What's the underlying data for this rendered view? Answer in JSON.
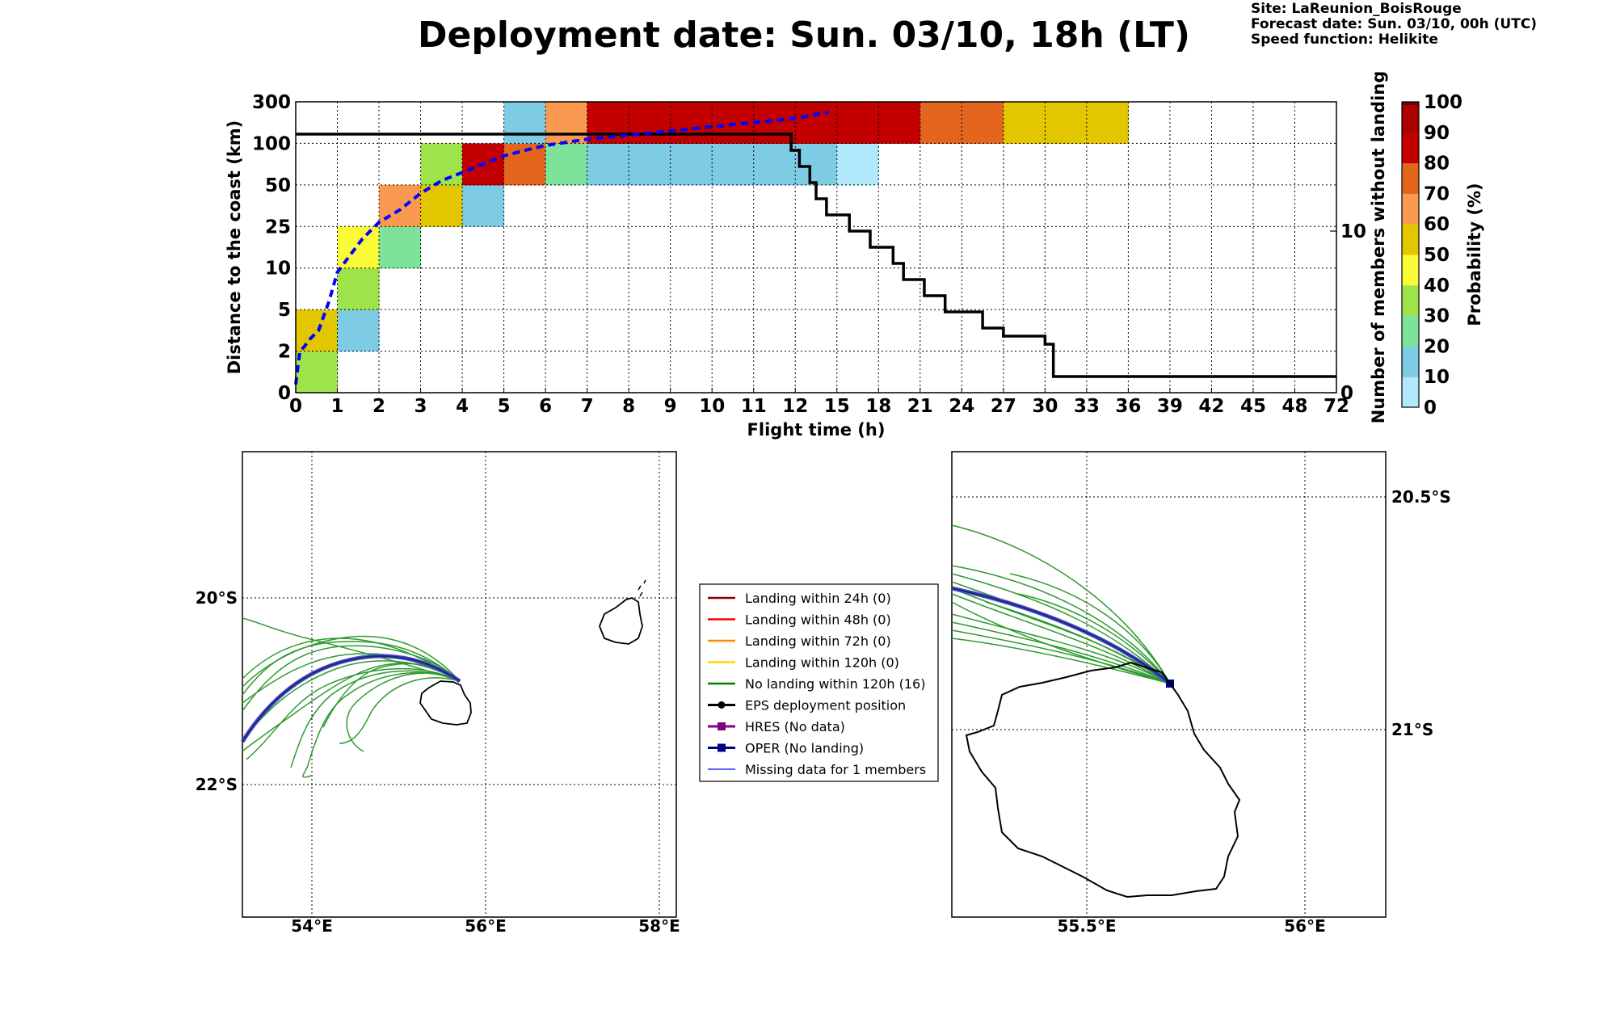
{
  "header": {
    "title": "Deployment date: Sun. 03/10, 18h (LT)",
    "site": "Site: LaReunion_BoisRouge",
    "forecast": "Forecast date: Sun. 03/10, 00h (UTC)",
    "speed": "Speed function: Helikite"
  },
  "chart_data": {
    "type": "heatmap",
    "xlabel": "Flight time (h)",
    "ylabel": "Distance to the coast (km)",
    "y2label": "Number of members without landing",
    "colorbar_label": "Probability (%)",
    "x_ticks": [
      "0",
      "1",
      "2",
      "3",
      "4",
      "5",
      "6",
      "7",
      "8",
      "9",
      "10",
      "11",
      "12",
      "15",
      "18",
      "21",
      "24",
      "27",
      "30",
      "33",
      "36",
      "39",
      "42",
      "45",
      "48",
      "72"
    ],
    "y_ticks": [
      "0",
      "2",
      "5",
      "10",
      "25",
      "50",
      "100",
      "300"
    ],
    "y2_ticks": [
      "0",
      "10"
    ],
    "y2_range": [
      0,
      18
    ],
    "colorbar_ticks": [
      "0",
      "10",
      "20",
      "30",
      "40",
      "50",
      "60",
      "70",
      "80",
      "90",
      "100"
    ],
    "colorbar_colors": [
      "#b2e8fb",
      "#7ecbe4",
      "#7ee39a",
      "#9de44a",
      "#fafa37",
      "#e2c700",
      "#fa9a50",
      "#e4661e",
      "#c20000",
      "#aa0000",
      "#6a0000"
    ],
    "cells": [
      {
        "x": 0,
        "y": 0,
        "p": 30
      },
      {
        "x": 0,
        "y": 1,
        "p": 50
      },
      {
        "x": 1,
        "y": 1,
        "p": 10
      },
      {
        "x": 1,
        "y": 2,
        "p": 30
      },
      {
        "x": 1,
        "y": 3,
        "p": 40
      },
      {
        "x": 2,
        "y": 3,
        "p": 20
      },
      {
        "x": 2,
        "y": 4,
        "p": 60
      },
      {
        "x": 3,
        "y": 4,
        "p": 50
      },
      {
        "x": 3,
        "y": 5,
        "p": 30
      },
      {
        "x": 4,
        "y": 4,
        "p": 10
      },
      {
        "x": 4,
        "y": 5,
        "p": 80
      },
      {
        "x": 5,
        "y": 5,
        "p": 70
      },
      {
        "x": 5,
        "y": 6,
        "p": 10
      },
      {
        "x": 6,
        "y": 5,
        "p": 20
      },
      {
        "x": 6,
        "y": 6,
        "p": 60
      },
      {
        "x": 7,
        "y": 5,
        "p": 10
      },
      {
        "x": 8,
        "y": 5,
        "p": 10
      },
      {
        "x": 9,
        "y": 5,
        "p": 10
      },
      {
        "x": 10,
        "y": 5,
        "p": 10
      },
      {
        "x": 11,
        "y": 5,
        "p": 10
      },
      {
        "x": 12,
        "y": 5,
        "p": 10
      },
      {
        "x": 13,
        "y": 5,
        "p": 0
      },
      {
        "x": 7,
        "y": 6,
        "p": 80
      },
      {
        "x": 8,
        "y": 6,
        "p": 80
      },
      {
        "x": 9,
        "y": 6,
        "p": 80
      },
      {
        "x": 10,
        "y": 6,
        "p": 80
      },
      {
        "x": 11,
        "y": 6,
        "p": 80
      },
      {
        "x": 12,
        "y": 6,
        "p": 80
      },
      {
        "x": 13,
        "y": 6,
        "p": 80
      },
      {
        "x": 14,
        "y": 6,
        "p": 80
      },
      {
        "x": 15,
        "y": 6,
        "p": 70
      },
      {
        "x": 16,
        "y": 6,
        "p": 70
      },
      {
        "x": 17,
        "y": 6,
        "p": 50
      },
      {
        "x": 18,
        "y": 6,
        "p": 50
      },
      {
        "x": 19,
        "y": 6,
        "p": 50
      }
    ],
    "median_distance_line": {
      "x": [
        0,
        0.1,
        0.2,
        0.35,
        0.55,
        0.8,
        1.0,
        1.3,
        1.6,
        1.8,
        2.0,
        2.5,
        3.0,
        3.5,
        4.0,
        4.5,
        5.0,
        5.5,
        6.0,
        7.0,
        8.0,
        9.0,
        10.0,
        11.0,
        12.0,
        12.8
      ],
      "y": [
        0.2,
        1.0,
        1.1,
        1.3,
        1.5,
        2.2,
        2.9,
        3.3,
        3.7,
        3.9,
        4.1,
        4.4,
        4.8,
        5.1,
        5.3,
        5.5,
        5.7,
        5.83,
        5.95,
        6.1,
        6.2,
        6.3,
        6.4,
        6.5,
        6.6,
        6.75
      ]
    },
    "members_without_landing": {
      "x": [
        0,
        11.8,
        11.9,
        12.1,
        12.35,
        12.5,
        12.75,
        13.3,
        13.8,
        14.35,
        14.6,
        15.1,
        15.6,
        16.5,
        17.0,
        18.0,
        18.2,
        19.9,
        19.9,
        21.0
      ],
      "y": [
        16,
        16,
        15,
        14,
        13,
        12,
        11,
        10,
        9,
        8,
        7,
        6,
        5,
        4,
        3.5,
        3,
        1,
        1,
        1,
        1
      ]
    }
  },
  "legend": {
    "items": [
      {
        "label": "Landing within 24h (0)",
        "color": "#8b0000",
        "marker": "line"
      },
      {
        "label": "Landing within 48h (0)",
        "color": "#ff0000",
        "marker": "line"
      },
      {
        "label": "Landing within 72h (0)",
        "color": "#ff8c00",
        "marker": "line"
      },
      {
        "label": "Landing within 120h (0)",
        "color": "#ffd700",
        "marker": "line"
      },
      {
        "label": "No landing within 120h (16)",
        "color": "#008000",
        "marker": "line"
      },
      {
        "label": "EPS deployment position",
        "color": "#000000",
        "marker": "circle"
      },
      {
        "label": "HRES (No data)",
        "color": "#800080",
        "marker": "square"
      },
      {
        "label": "OPER (No landing)",
        "color": "#000080",
        "marker": "square"
      },
      {
        "label": "Missing data for 1 members",
        "color": "#0000ff",
        "marker": "thin"
      }
    ]
  },
  "map_left": {
    "lon_labels": [
      "54°E",
      "56°E",
      "58°E"
    ],
    "lat_labels": [
      "20°S",
      "22°S"
    ]
  },
  "map_right": {
    "lon_labels": [
      "55.5°E",
      "56°E"
    ],
    "lat_labels": [
      "20.5°S",
      "21°S"
    ]
  }
}
